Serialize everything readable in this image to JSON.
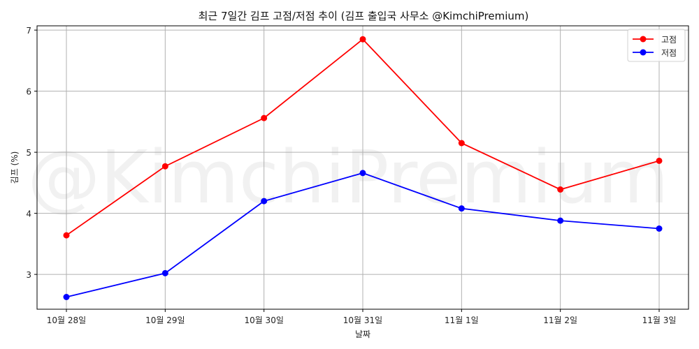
{
  "chart_data": {
    "type": "line",
    "title": "최근 7일간 김프 고점/저점 추이 (김프 출입국 사무소 @KimchiPremium)",
    "xlabel": "날짜",
    "ylabel": "김프 (%)",
    "categories": [
      "10월 28일",
      "10월 29일",
      "10월 30일",
      "10월 31일",
      "11월 1일",
      "11월 2일",
      "11월 3일"
    ],
    "series": [
      {
        "name": "고점",
        "color": "#ff0000",
        "values": [
          3.64,
          4.77,
          5.56,
          6.85,
          5.15,
          4.39,
          4.86
        ]
      },
      {
        "name": "저점",
        "color": "#0000ff",
        "values": [
          2.63,
          3.02,
          4.2,
          4.66,
          4.08,
          3.88,
          3.75
        ]
      }
    ],
    "yticks": [
      3,
      4,
      5,
      6,
      7
    ],
    "ylim": [
      2.43,
      7.07
    ],
    "grid": true,
    "legend_position": "upper right",
    "watermark": "@KimchiPremium"
  }
}
